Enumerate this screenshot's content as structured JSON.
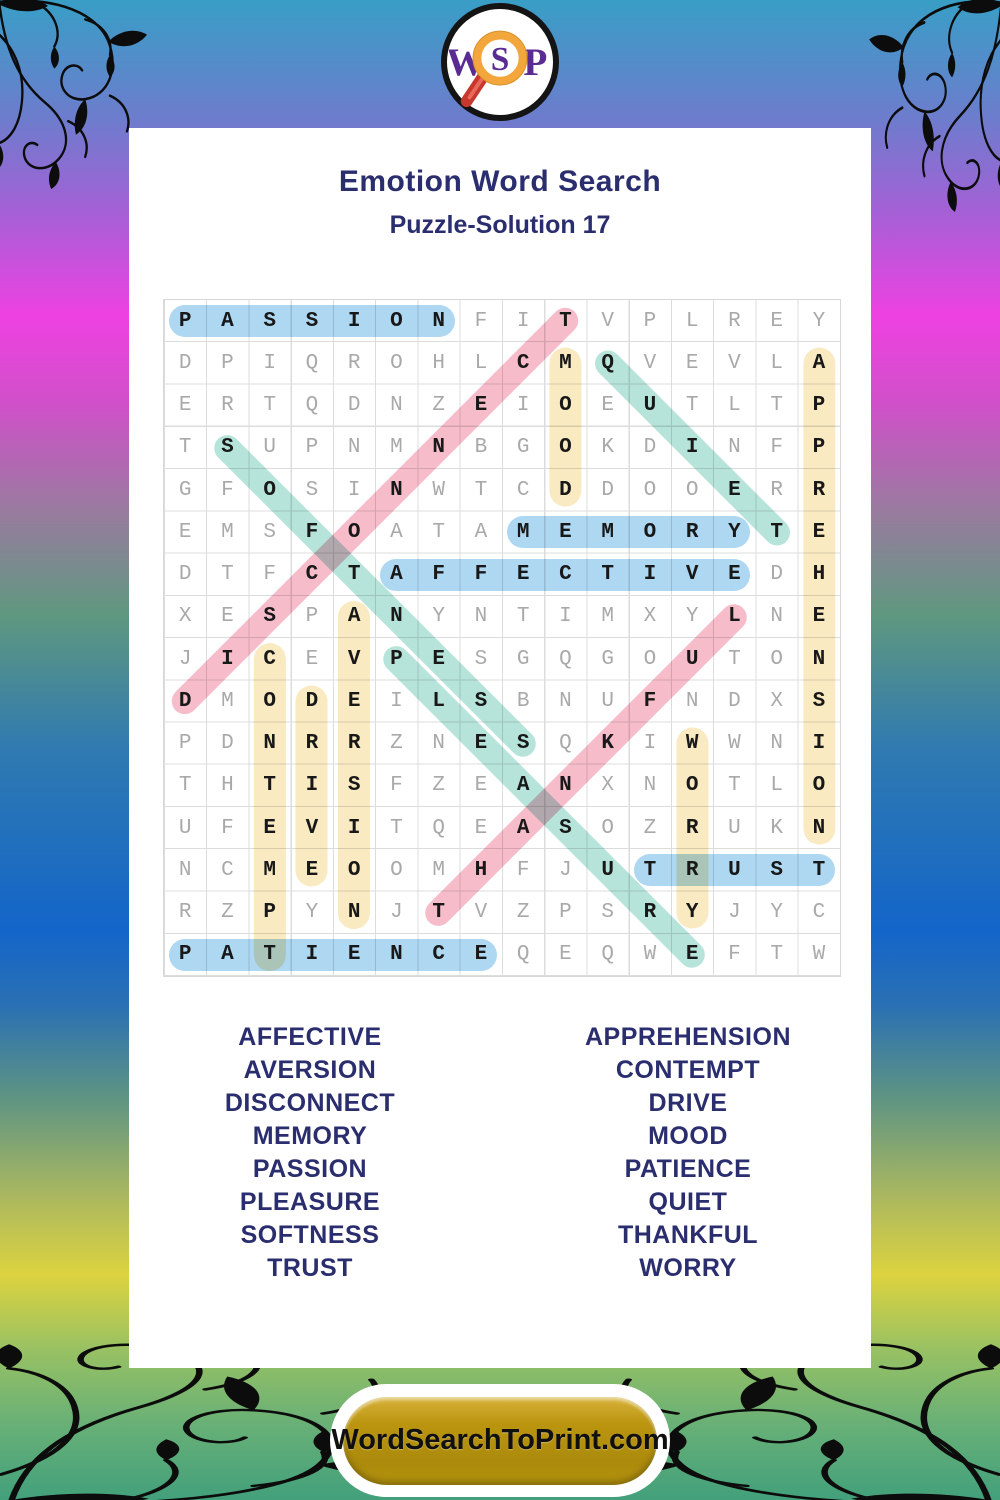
{
  "page": {
    "title": "Emotion Word Search",
    "subtitle": "Puzzle-Solution 17"
  },
  "logo": {
    "letters": {
      "w": "W",
      "s": "S",
      "p": "P"
    },
    "accent_orange": "#f2a63c",
    "accent_red": "#c8372d",
    "letter_purple": "#5a2b92"
  },
  "footer": {
    "button_label": "WordSearchToPrint.com",
    "button_gold": "#b5930e"
  },
  "word_lists": {
    "left": [
      "AFFECTIVE",
      "AVERSION",
      "DISCONNECT",
      "MEMORY",
      "PASSION",
      "PLEASURE",
      "SOFTNESS",
      "TRUST"
    ],
    "right": [
      "APPREHENSION",
      "CONTEMPT",
      "DRIVE",
      "MOOD",
      "PATIENCE",
      "QUIET",
      "THANKFUL",
      "WORRY"
    ]
  },
  "grid": {
    "size": 16,
    "rows": [
      "PASSIONFITVPLREY",
      "DPIQROHLCMQVEVLA",
      "ERTQDNZEIOEUTLTP",
      "TSUPNMNBGOKDINFP",
      "GFOSINWTCDDOOERR",
      "EMSFOATAMEMORYTE",
      "DTFCTAFFECTIVEDH",
      "XESPANYNTIMXYLNE",
      "JICEVPESGQGOUTON",
      "DMODEILSBNUFNDXS",
      "PDNRRZNESQKIWWNI",
      "THTISFZEANXNOTLO",
      "UFEVITQEASOZRUKN",
      "NCMEOOMHFJUTRUST",
      "RZPYNJTVZPSRYJYC",
      "PATIENCEQEQWEFTW"
    ],
    "placements": [
      {
        "word": "PASSION",
        "row": 0,
        "col": 0,
        "dir": "H",
        "color": "blue"
      },
      {
        "word": "MEMORY",
        "row": 5,
        "col": 8,
        "dir": "H",
        "color": "blue"
      },
      {
        "word": "AFFECTIVE",
        "row": 6,
        "col": 5,
        "dir": "H",
        "color": "blue"
      },
      {
        "word": "TRUST",
        "row": 13,
        "col": 11,
        "dir": "H",
        "color": "blue"
      },
      {
        "word": "PATIENCE",
        "row": 15,
        "col": 0,
        "dir": "H",
        "color": "blue"
      },
      {
        "word": "MOOD",
        "row": 1,
        "col": 9,
        "dir": "V",
        "color": "yellow"
      },
      {
        "word": "APPREHENSION",
        "row": 1,
        "col": 15,
        "dir": "V",
        "color": "yellow"
      },
      {
        "word": "AVERSION",
        "row": 7,
        "col": 4,
        "dir": "V",
        "color": "yellow"
      },
      {
        "word": "CONTEMPT",
        "row": 8,
        "col": 2,
        "dir": "V",
        "color": "yellow"
      },
      {
        "word": "DRIVE",
        "row": 9,
        "col": 3,
        "dir": "V",
        "color": "yellow"
      },
      {
        "word": "WORRY",
        "row": 10,
        "col": 12,
        "dir": "V",
        "color": "yellow"
      },
      {
        "word": "SOFTNESS",
        "row": 3,
        "col": 1,
        "dir": "DD",
        "color": "teal"
      },
      {
        "word": "QUIET",
        "row": 1,
        "col": 10,
        "dir": "DD",
        "color": "teal"
      },
      {
        "word": "PLEASURE",
        "row": 8,
        "col": 5,
        "dir": "DD",
        "color": "teal"
      },
      {
        "word": "DISCONNECT",
        "row": 9,
        "col": 0,
        "dir": "DU",
        "color": "pink"
      },
      {
        "word": "THANKFUL",
        "row": 14,
        "col": 6,
        "dir": "DU",
        "color": "pink"
      }
    ],
    "highlight_colors": {
      "blue": "#aed7f2",
      "yellow": "#faeac2",
      "pink": "#f6bcca",
      "teal": "#b7e4da"
    }
  },
  "colors": {
    "navy": "#2b2e6e",
    "letter_gray": "#a9a9a9",
    "letter_dark": "#181818"
  }
}
